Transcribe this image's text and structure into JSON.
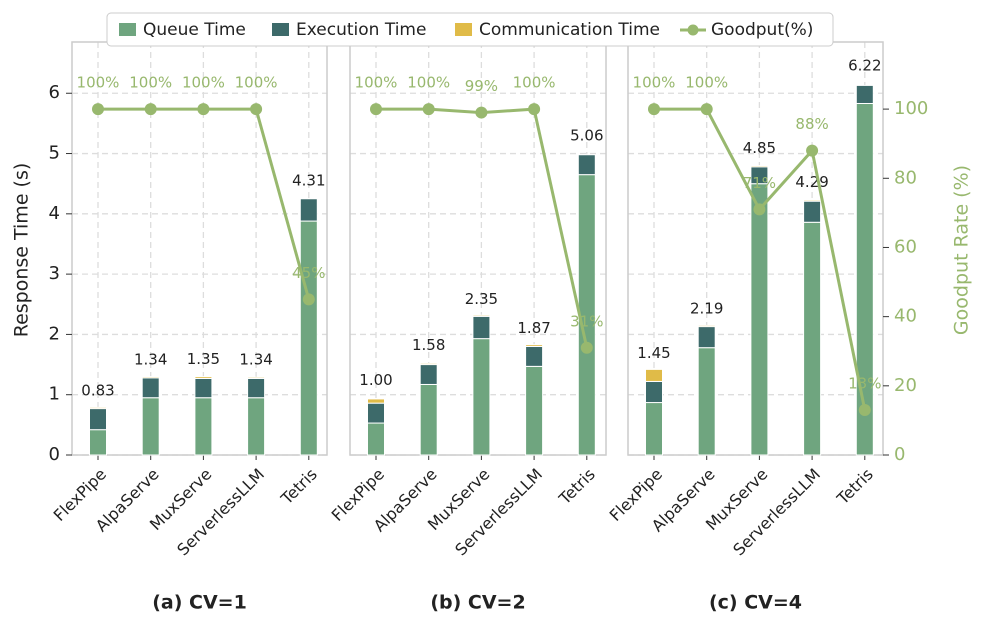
{
  "chart_data": [
    {
      "type": "bar",
      "title": "(a) CV=1",
      "ylabel": "Response Time (s)",
      "categories": [
        "FlexPipe",
        "AlpaServe",
        "MuxServe",
        "ServerlessLLM",
        "Tetris"
      ],
      "series": [
        {
          "name": "Queue Time",
          "color": "#6fa57f",
          "values": [
            0.42,
            0.95,
            0.95,
            0.95,
            3.88
          ]
        },
        {
          "name": "Execution Time",
          "color": "#3d6a6a",
          "values": [
            0.35,
            0.33,
            0.32,
            0.32,
            0.37
          ]
        },
        {
          "name": "Communication Time",
          "color": "#e0bb48",
          "values": [
            0.02,
            0.02,
            0.03,
            0.02,
            0
          ]
        },
        {
          "name": "Goodput(%)",
          "color": "#98b86e",
          "axis": "y2",
          "values": [
            100,
            100,
            100,
            100,
            45
          ],
          "value_labels": [
            "100%",
            "100%",
            "100%",
            "100%",
            "45%"
          ]
        }
      ],
      "totals": [
        0.83,
        1.34,
        1.35,
        1.34,
        4.31
      ],
      "total_labels": [
        "0.83",
        "1.34",
        "1.35",
        "1.34",
        "4.31"
      ],
      "ylim": [
        0,
        6.85
      ],
      "yticks": [
        0,
        1,
        2,
        3,
        4,
        5,
        6
      ],
      "grid": true
    },
    {
      "type": "bar",
      "title": "(b) CV=2",
      "categories": [
        "FlexPipe",
        "AlpaServe",
        "MuxServe",
        "ServerlessLLM",
        "Tetris"
      ],
      "series": [
        {
          "color": "#6fa57f",
          "values": [
            0.53,
            1.17,
            1.93,
            1.47,
            4.65
          ]
        },
        {
          "color": "#3d6a6a",
          "values": [
            0.33,
            0.33,
            0.37,
            0.33,
            0.33
          ]
        },
        {
          "color": "#e0bb48",
          "values": [
            0.07,
            0.02,
            0.02,
            0.03,
            0
          ]
        },
        {
          "color": "#98b86e",
          "axis": "y2",
          "values": [
            100,
            100,
            99,
            100,
            31
          ],
          "value_labels": [
            "100%",
            "100%",
            "99%",
            "100%",
            "31%"
          ]
        }
      ],
      "totals": [
        1.0,
        1.58,
        2.35,
        1.87,
        5.06
      ],
      "total_labels": [
        "1.00",
        "1.58",
        "2.35",
        "1.87",
        "5.06"
      ]
    },
    {
      "type": "bar",
      "title": "(c) CV=4",
      "y2label": "Goodput Rate (%)",
      "categories": [
        "FlexPipe",
        "AlpaServe",
        "MuxServe",
        "ServerlessLLM",
        "Tetris"
      ],
      "series": [
        {
          "color": "#6fa57f",
          "values": [
            0.87,
            1.78,
            4.5,
            3.86,
            5.83
          ]
        },
        {
          "color": "#3d6a6a",
          "values": [
            0.35,
            0.35,
            0.28,
            0.35,
            0.3
          ]
        },
        {
          "color": "#e0bb48",
          "values": [
            0.2,
            0.02,
            0.02,
            0.02,
            0
          ]
        },
        {
          "color": "#98b86e",
          "axis": "y2",
          "values": [
            100,
            100,
            71,
            88,
            13
          ],
          "value_labels": [
            "100%",
            "100%",
            "71%",
            "88%",
            "13%"
          ]
        }
      ],
      "totals": [
        1.45,
        2.19,
        4.85,
        4.29,
        6.22
      ],
      "total_labels": [
        "1.45",
        "2.19",
        "4.85",
        "4.29",
        "6.22"
      ],
      "y2lim": [
        0,
        119.4
      ],
      "y2ticks": [
        0,
        20,
        40,
        60,
        80,
        100
      ]
    }
  ]
}
